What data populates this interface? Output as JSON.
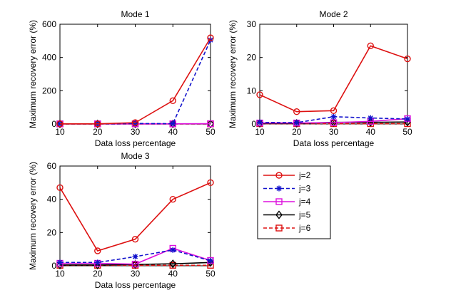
{
  "chart_data": [
    {
      "type": "line",
      "title": "Mode 1",
      "xlabel": "Data loss percentage",
      "ylabel": "Maximum recovery error (%)",
      "xlim": [
        10,
        50
      ],
      "ylim": [
        0,
        600
      ],
      "xticks": [
        10,
        20,
        30,
        40,
        50
      ],
      "yticks": [
        0,
        200,
        400,
        600
      ],
      "x": [
        10,
        20,
        30,
        40,
        50
      ],
      "series": [
        {
          "name": "j=2",
          "values": [
            1,
            1,
            8,
            140,
            518
          ]
        },
        {
          "name": "j=3",
          "values": [
            1,
            1,
            3,
            2,
            505
          ]
        },
        {
          "name": "j=4",
          "values": [
            1,
            1,
            1,
            1,
            2
          ]
        },
        {
          "name": "j=5",
          "values": [
            0.5,
            0.5,
            0.5,
            0.5,
            1
          ]
        },
        {
          "name": "j=6",
          "values": [
            0.3,
            0.3,
            0.3,
            0.3,
            0.5
          ]
        }
      ]
    },
    {
      "type": "line",
      "title": "Mode 2",
      "xlabel": "Data loss percentage",
      "ylabel": "Maximum recovery error (%)",
      "xlim": [
        10,
        50
      ],
      "ylim": [
        0,
        30
      ],
      "xticks": [
        10,
        20,
        30,
        40,
        50
      ],
      "yticks": [
        0,
        10,
        20,
        30
      ],
      "x": [
        10,
        20,
        30,
        40,
        50
      ],
      "series": [
        {
          "name": "j=2",
          "values": [
            8.8,
            3.7,
            4,
            23.5,
            19.6
          ]
        },
        {
          "name": "j=3",
          "values": [
            0.5,
            0.4,
            2.2,
            1.8,
            1.5
          ]
        },
        {
          "name": "j=4",
          "values": [
            0.3,
            0.3,
            0.4,
            0.8,
            1.6
          ]
        },
        {
          "name": "j=5",
          "values": [
            0.2,
            0.2,
            0.5,
            0.5,
            0.6
          ]
        },
        {
          "name": "j=6",
          "values": [
            0.1,
            0.1,
            0.1,
            0.1,
            0.1
          ]
        }
      ]
    },
    {
      "type": "line",
      "title": "Mode 3",
      "xlabel": "Data loss percentage",
      "ylabel": "Maximum recovery error (%)",
      "xlim": [
        10,
        50
      ],
      "ylim": [
        0,
        60
      ],
      "xticks": [
        10,
        20,
        30,
        40,
        50
      ],
      "yticks": [
        0,
        20,
        40,
        60
      ],
      "x": [
        10,
        20,
        30,
        40,
        50
      ],
      "series": [
        {
          "name": "j=2",
          "values": [
            47,
            9,
            16,
            40,
            50
          ]
        },
        {
          "name": "j=3",
          "values": [
            2,
            2,
            5.5,
            9.5,
            3
          ]
        },
        {
          "name": "j=4",
          "values": [
            1.5,
            1.5,
            1,
            10.5,
            3.2
          ]
        },
        {
          "name": "j=5",
          "values": [
            0.5,
            0.5,
            0.8,
            1.2,
            2
          ]
        },
        {
          "name": "j=6",
          "values": [
            0.3,
            0.3,
            0.3,
            0.3,
            0.3
          ]
        }
      ]
    }
  ],
  "legend": {
    "placement": "lower-right",
    "entries": [
      {
        "label": "j=2",
        "color": "#dd1111",
        "dash": "solid",
        "marker": "circle"
      },
      {
        "label": "j=3",
        "color": "#1111cc",
        "dash": "dashed",
        "marker": "star"
      },
      {
        "label": "j=4",
        "color": "#dd11dd",
        "dash": "solid",
        "marker": "square"
      },
      {
        "label": "j=5",
        "color": "#000000",
        "dash": "solid",
        "marker": "diamond"
      },
      {
        "label": "j=6",
        "color": "#dd1111",
        "dash": "dashed",
        "marker": "square"
      }
    ]
  }
}
